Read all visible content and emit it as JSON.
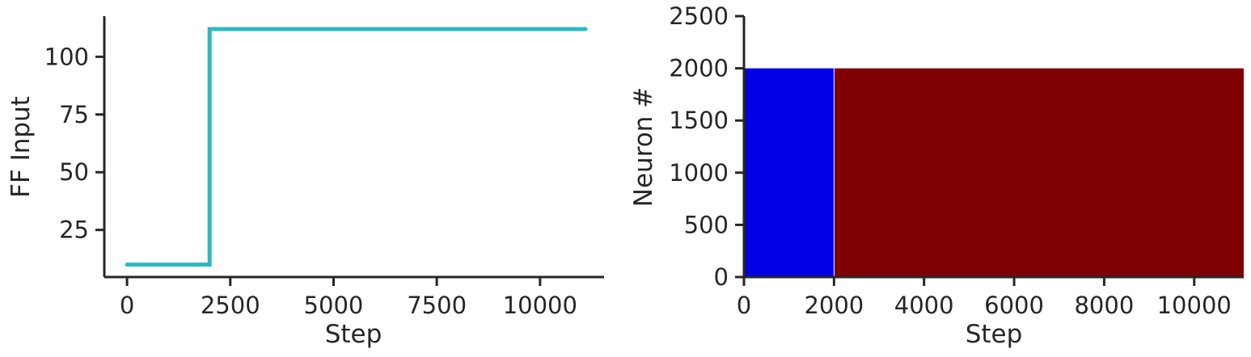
{
  "chart_data": [
    {
      "type": "line",
      "xlabel": "Step",
      "ylabel": "FF Input",
      "xlim": [
        -550,
        11550
      ],
      "ylim": [
        4.6,
        117.6
      ],
      "xticks": [
        0,
        2500,
        5000,
        7500,
        10000
      ],
      "xtick_labels": [
        "0",
        "2500",
        "5000",
        "7500",
        "10000"
      ],
      "yticks": [
        25,
        50,
        75,
        100
      ],
      "ytick_labels": [
        "25",
        "50",
        "75",
        100
      ],
      "grid": false,
      "color": "#2cb8c1",
      "series": [
        {
          "x": [
            0,
            2000,
            2000,
            11100
          ],
          "y": [
            10,
            10,
            112,
            112
          ]
        }
      ]
    },
    {
      "type": "heatmap",
      "xlabel": "Step",
      "ylabel": "Neuron #",
      "xlim": [
        0,
        11100
      ],
      "ylim": [
        0,
        2500
      ],
      "xticks": [
        0,
        2000,
        4000,
        6000,
        8000,
        10000
      ],
      "xtick_labels": [
        "0",
        "2000",
        "4000",
        "6000",
        "8000",
        "10000"
      ],
      "yticks": [
        0,
        500,
        1000,
        1500,
        2000,
        2500
      ],
      "ytick_labels": [
        "0",
        "500",
        "1000",
        "1500",
        "2000",
        "2500"
      ],
      "grid": false,
      "regions": [
        {
          "x0": 0,
          "x1": 2000,
          "y0": 0,
          "y1": 2000,
          "color": "#0000e6"
        },
        {
          "x0": 2000,
          "x1": 11100,
          "y0": 0,
          "y1": 2000,
          "color": "#7f0000"
        }
      ]
    }
  ]
}
